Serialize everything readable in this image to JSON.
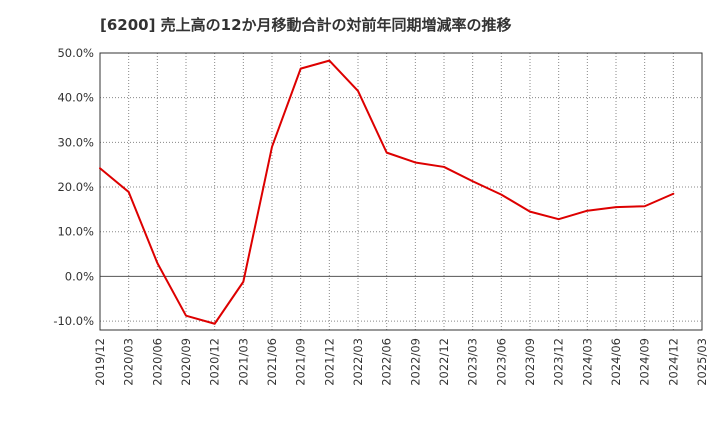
{
  "chart_data": {
    "type": "line",
    "title": "[6200]  売上高の12か月移動合計の対前年同期増減率の推移",
    "xlabel": "",
    "ylabel": "",
    "ylim": [
      -12,
      50
    ],
    "yticks": [
      50,
      40,
      30,
      20,
      10,
      0,
      -10
    ],
    "ytick_labels": [
      "50.0%",
      "40.0%",
      "30.0%",
      "20.0%",
      "10.0%",
      "0.0%",
      "-10.0%"
    ],
    "categories": [
      "2019/12",
      "2020/03",
      "2020/06",
      "2020/09",
      "2020/12",
      "2021/03",
      "2021/06",
      "2021/09",
      "2021/12",
      "2022/03",
      "2022/06",
      "2022/09",
      "2022/12",
      "2023/03",
      "2023/06",
      "2023/09",
      "2023/12",
      "2024/03",
      "2024/06",
      "2024/09",
      "2024/12",
      "2025/03"
    ],
    "series": [
      {
        "name": "売上高の12か月移動合計の対前年同期増減率",
        "color": "#dd0000",
        "values": [
          24.2,
          18.9,
          3.0,
          -8.8,
          -10.6,
          -1.2,
          29.0,
          46.5,
          48.3,
          41.5,
          27.7,
          25.5,
          24.5,
          21.3,
          18.3,
          14.5,
          12.8,
          14.7,
          15.5,
          15.7,
          18.5,
          null
        ]
      }
    ],
    "grid": true,
    "legend": "none"
  }
}
